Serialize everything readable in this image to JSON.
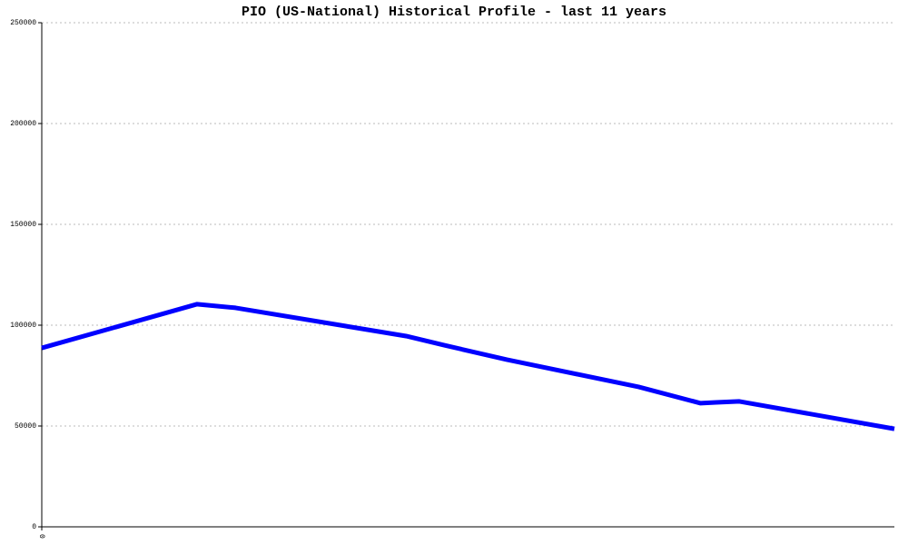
{
  "chart_data": {
    "type": "line",
    "title": "PIO (US-National) Historical Profile - last 11 years",
    "x": [
      0,
      2,
      2.5,
      4.7,
      5.2,
      6,
      7.7,
      8.5,
      8.7,
      9,
      11
    ],
    "series": [
      {
        "color": "#0000ff",
        "values": [
          88700,
          110400,
          108600,
          94600,
          90000,
          82900,
          69400,
          61300,
          61700,
          62200,
          48600
        ]
      }
    ],
    "xlim": [
      0,
      11
    ],
    "xticks": [
      0
    ],
    "ylim": [
      0,
      250000
    ],
    "yticks": [
      0,
      50000,
      100000,
      150000,
      200000,
      250000
    ],
    "grid": true
  }
}
